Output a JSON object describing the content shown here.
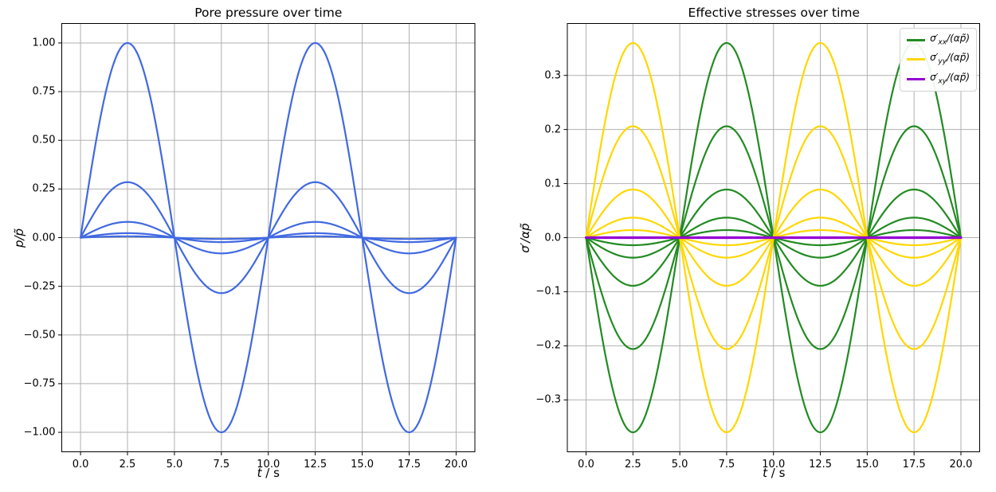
{
  "chart_data": [
    {
      "type": "line",
      "title": "Pore pressure over time",
      "xlabel_parts": {
        "var": "t",
        "rest": " / s"
      },
      "ylabel": "p/p̃",
      "grid": true,
      "xlim": [
        -1,
        21
      ],
      "ylim": [
        -1.1,
        1.1
      ],
      "x_range": [
        0,
        20
      ],
      "period_s": 10,
      "waveform": "y(t) = amplitude × sin(2π·t / period_s)",
      "xticks": [
        {
          "v": 0,
          "label": "0.0"
        },
        {
          "v": 2.5,
          "label": "2.5"
        },
        {
          "v": 5,
          "label": "5.0"
        },
        {
          "v": 7.5,
          "label": "7.5"
        },
        {
          "v": 10,
          "label": "10.0"
        },
        {
          "v": 12.5,
          "label": "12.5"
        },
        {
          "v": 15,
          "label": "15.0"
        },
        {
          "v": 17.5,
          "label": "17.5"
        },
        {
          "v": 20,
          "label": "20.0"
        }
      ],
      "yticks": [
        {
          "v": 1.0,
          "label": "1.00"
        },
        {
          "v": 0.75,
          "label": "0.75"
        },
        {
          "v": 0.5,
          "label": "0.50"
        },
        {
          "v": 0.25,
          "label": "0.25"
        },
        {
          "v": 0.0,
          "label": "0.00"
        },
        {
          "v": -0.25,
          "label": "−0.25"
        },
        {
          "v": -0.5,
          "label": "−0.50"
        },
        {
          "v": -0.75,
          "label": "−0.75"
        },
        {
          "v": -1.0,
          "label": "−1.00"
        }
      ],
      "series": [
        {
          "data_name": "pore-pressure-curve",
          "label": "p/p̃",
          "color": "#4169e1",
          "line_width": 2.2,
          "sign": 1,
          "amplitudes": [
            1.0,
            0.285,
            0.081,
            0.023,
            0.007
          ]
        }
      ]
    },
    {
      "type": "line",
      "title": "Effective stresses over time",
      "xlabel_parts": {
        "var": "t",
        "rest": " / s"
      },
      "ylabel": "σ′/αp̃",
      "grid": true,
      "xlim": [
        -1,
        21
      ],
      "ylim": [
        -0.396,
        0.396
      ],
      "x_range": [
        0,
        20
      ],
      "period_s": 10,
      "waveform": "y(t) = sign × amplitude × sin(2π·t / period_s)",
      "xticks": [
        {
          "v": 0,
          "label": "0.0"
        },
        {
          "v": 2.5,
          "label": "2.5"
        },
        {
          "v": 5,
          "label": "5.0"
        },
        {
          "v": 7.5,
          "label": "7.5"
        },
        {
          "v": 10,
          "label": "10.0"
        },
        {
          "v": 12.5,
          "label": "12.5"
        },
        {
          "v": 15,
          "label": "15.0"
        },
        {
          "v": 17.5,
          "label": "17.5"
        },
        {
          "v": 20,
          "label": "20.0"
        }
      ],
      "yticks": [
        {
          "v": 0.3,
          "label": "0.3"
        },
        {
          "v": 0.2,
          "label": "0.2"
        },
        {
          "v": 0.1,
          "label": "0.1"
        },
        {
          "v": 0.0,
          "label": "0.0"
        },
        {
          "v": -0.1,
          "label": "−0.1"
        },
        {
          "v": -0.2,
          "label": "−0.2"
        },
        {
          "v": -0.3,
          "label": "−0.3"
        }
      ],
      "series": [
        {
          "data_name": "sigma-xx-curve",
          "label_parts": {
            "pre": "σ′",
            "sub": "xx",
            "post": "/(αp̃)"
          },
          "color": "#228b22",
          "line_width": 2.2,
          "sign": -1,
          "amplitudes": [
            0.36,
            0.206,
            0.089,
            0.037,
            0.014
          ]
        },
        {
          "data_name": "sigma-yy-curve",
          "label_parts": {
            "pre": "σ′",
            "sub": "yy",
            "post": "/(αp̃)"
          },
          "color": "#ffd700",
          "line_width": 2.2,
          "sign": 1,
          "amplitudes": [
            0.36,
            0.206,
            0.089,
            0.037,
            0.014
          ]
        },
        {
          "data_name": "sigma-xy-curve",
          "label_parts": {
            "pre": "σ′",
            "sub": "xy",
            "post": "/(αp̃)"
          },
          "color": "#9400d3",
          "line_width": 3.2,
          "sign": 1,
          "amplitudes": [
            0.0
          ]
        }
      ],
      "legend": {
        "location": "upper right",
        "entries": [
          {
            "color": "#228b22",
            "pre": "σ′",
            "sub": "xx",
            "post": "/(αp̃)"
          },
          {
            "color": "#ffd700",
            "pre": "σ′",
            "sub": "yy",
            "post": "/(αp̃)"
          },
          {
            "color": "#9400d3",
            "pre": "σ′",
            "sub": "xy",
            "post": "/(αp̃)"
          }
        ]
      }
    }
  ],
  "style": {
    "grid_color": "#b0b0b0",
    "spine_color": "#000000",
    "background": "#ffffff"
  }
}
